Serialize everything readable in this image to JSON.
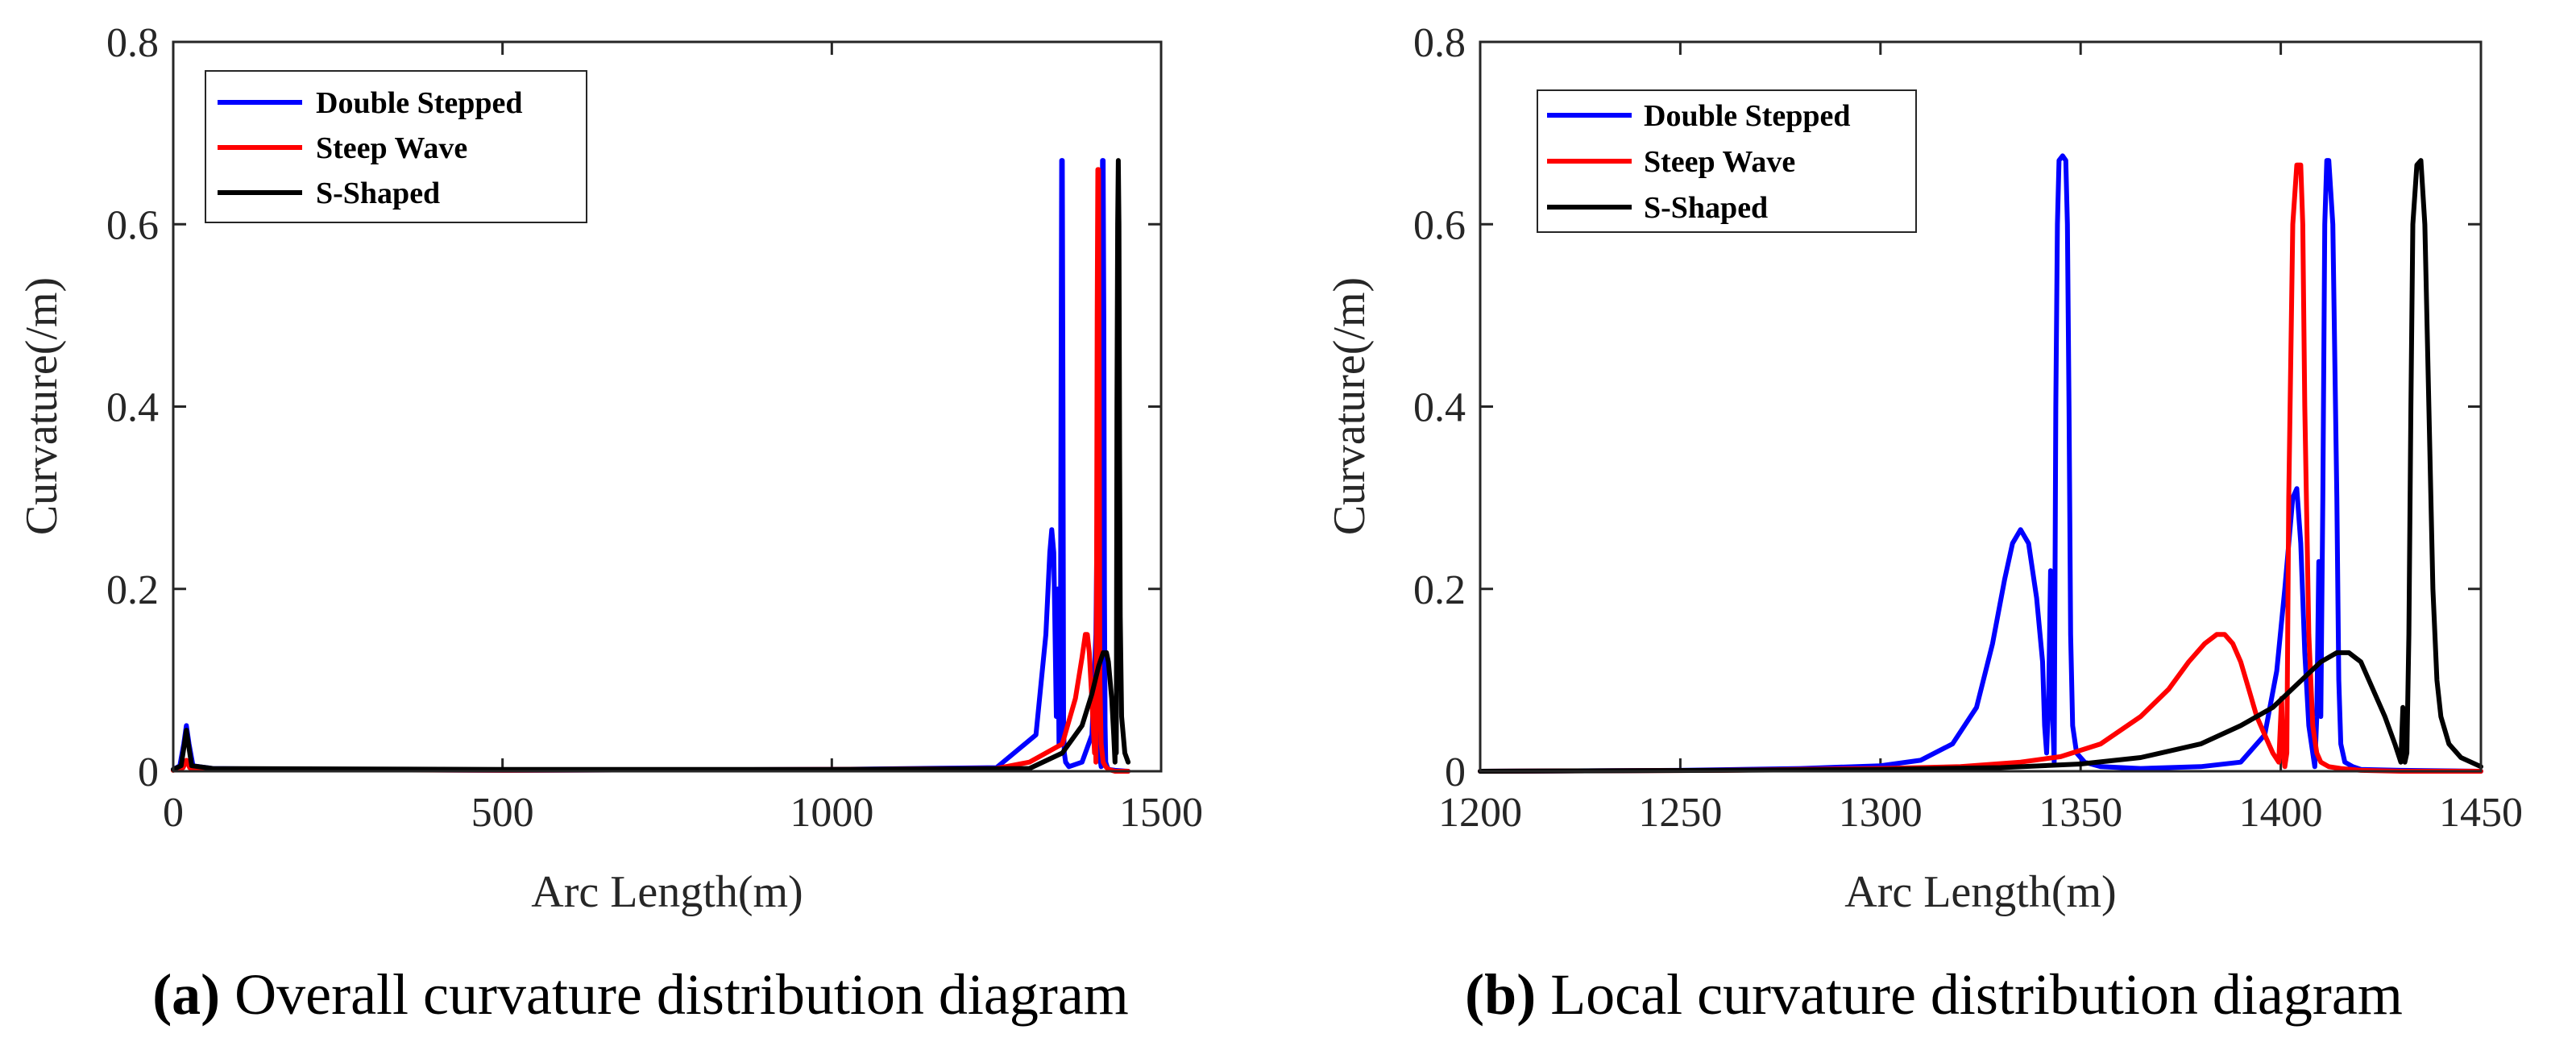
{
  "chart_data": [
    {
      "type": "line",
      "panel_label": "a",
      "caption": "Overall curvature distribution diagram",
      "xlabel": "Arc Length(m)",
      "ylabel": "Curvature(/m)",
      "xlim": [
        0,
        1500
      ],
      "ylim": [
        0,
        0.8
      ],
      "xticks": [
        0,
        500,
        1000,
        1500
      ],
      "yticks": [
        0,
        0.2,
        0.4,
        0.6,
        0.8
      ],
      "xtick_labels": [
        "0",
        "500",
        "1000",
        "1500"
      ],
      "ytick_labels": [
        "0",
        "0.2",
        "0.4",
        "0.6",
        "0.8"
      ],
      "legend_position": "top-left",
      "series": [
        {
          "name": "Double Stepped",
          "color": "#0000ff",
          "x": [
            0,
            10,
            16,
            20,
            24,
            30,
            60,
            200,
            500,
            1000,
            1250,
            1310,
            1325,
            1331,
            1334,
            1337,
            1339,
            1341,
            1343,
            1345,
            1347,
            1348,
            1349,
            1350,
            1351,
            1352,
            1353,
            1355,
            1360,
            1380,
            1395,
            1401,
            1403,
            1405,
            1406,
            1407,
            1408,
            1409,
            1410,
            1411,
            1412,
            1413,
            1414,
            1415,
            1416,
            1418,
            1420,
            1430,
            1450
          ],
          "y": [
            0.002,
            0.006,
            0.03,
            0.05,
            0.03,
            0.006,
            0.003,
            0.002,
            0.001,
            0.002,
            0.004,
            0.04,
            0.15,
            0.24,
            0.265,
            0.24,
            0.15,
            0.06,
            0.2,
            0.03,
            0.05,
            0.4,
            0.67,
            0.67,
            0.4,
            0.05,
            0.02,
            0.01,
            0.005,
            0.01,
            0.04,
            0.15,
            0.29,
            0.3,
            0.2,
            0.05,
            0.01,
            0.005,
            0.3,
            0.67,
            0.67,
            0.5,
            0.2,
            0.05,
            0.01,
            0.005,
            0.002,
            0.001,
            0.0
          ]
        },
        {
          "name": "Steep Wave",
          "color": "#ff0000",
          "x": [
            0,
            15,
            20,
            25,
            60,
            500,
            1000,
            1250,
            1300,
            1350,
            1370,
            1380,
            1385,
            1388,
            1391,
            1394,
            1397,
            1399,
            1400,
            1401,
            1402,
            1403,
            1404,
            1405,
            1406,
            1407,
            1409,
            1412,
            1416,
            1420,
            1425,
            1430,
            1450
          ],
          "y": [
            0.001,
            0.004,
            0.012,
            0.004,
            0.002,
            0.001,
            0.002,
            0.003,
            0.01,
            0.03,
            0.08,
            0.125,
            0.15,
            0.15,
            0.13,
            0.09,
            0.05,
            0.02,
            0.08,
            0.01,
            0.2,
            0.5,
            0.66,
            0.66,
            0.4,
            0.1,
            0.03,
            0.01,
            0.005,
            0.002,
            0.001,
            0.0,
            0.0
          ]
        },
        {
          "name": "S-Shaped",
          "color": "#000000",
          "x": [
            0,
            12,
            17,
            20,
            23,
            28,
            60,
            500,
            1000,
            1300,
            1350,
            1380,
            1395,
            1405,
            1412,
            1417,
            1420,
            1425,
            1428,
            1430,
            1431,
            1432,
            1433,
            1434,
            1435,
            1436,
            1437,
            1438,
            1440,
            1445,
            1450
          ],
          "y": [
            0.002,
            0.006,
            0.03,
            0.045,
            0.03,
            0.006,
            0.003,
            0.002,
            0.002,
            0.003,
            0.02,
            0.05,
            0.085,
            0.115,
            0.13,
            0.13,
            0.12,
            0.08,
            0.04,
            0.01,
            0.07,
            0.02,
            0.4,
            0.6,
            0.67,
            0.6,
            0.35,
            0.17,
            0.06,
            0.02,
            0.01
          ]
        }
      ]
    },
    {
      "type": "line",
      "panel_label": "b",
      "caption": "Local curvature distribution diagram",
      "xlabel": "Arc Length(m)",
      "ylabel": "Curvature(/m)",
      "xlim": [
        1200,
        1450
      ],
      "ylim": [
        0,
        0.8
      ],
      "xticks": [
        1200,
        1250,
        1300,
        1350,
        1400,
        1450
      ],
      "yticks": [
        0,
        0.2,
        0.4,
        0.6,
        0.8
      ],
      "xtick_labels": [
        "1200",
        "1250",
        "1300",
        "1350",
        "1400",
        "1450"
      ],
      "ytick_labels": [
        "0",
        "0.2",
        "0.4",
        "0.6",
        "0.8"
      ],
      "legend_position": "top-left",
      "series": [
        {
          "name": "Double Stepped",
          "color": "#0000ff",
          "x": [
            1200,
            1250,
            1280,
            1300,
            1310,
            1318,
            1324,
            1328,
            1331,
            1333,
            1335,
            1337,
            1339,
            1340.5,
            1341,
            1341.5,
            1342,
            1342.5,
            1343,
            1343.4,
            1343.8,
            1344.2,
            1344.6,
            1345.5,
            1346.3,
            1346.7,
            1347.1,
            1347.5,
            1348,
            1349,
            1351,
            1355,
            1365,
            1380,
            1390,
            1396,
            1399,
            1401,
            1403,
            1404,
            1405,
            1406,
            1407,
            1408,
            1408.5,
            1409,
            1409.5,
            1410,
            1410.5,
            1411,
            1411.5,
            1412,
            1413,
            1414,
            1414.5,
            1415,
            1416,
            1418,
            1420,
            1430,
            1450
          ],
          "y": [
            0.0,
            0.001,
            0.003,
            0.006,
            0.012,
            0.03,
            0.07,
            0.14,
            0.21,
            0.25,
            0.265,
            0.25,
            0.19,
            0.12,
            0.05,
            0.02,
            0.08,
            0.22,
            0.06,
            0.01,
            0.4,
            0.6,
            0.67,
            0.675,
            0.67,
            0.6,
            0.4,
            0.15,
            0.05,
            0.02,
            0.01,
            0.005,
            0.003,
            0.005,
            0.01,
            0.04,
            0.11,
            0.2,
            0.3,
            0.31,
            0.25,
            0.13,
            0.05,
            0.02,
            0.005,
            0.06,
            0.23,
            0.06,
            0.3,
            0.6,
            0.67,
            0.67,
            0.6,
            0.3,
            0.1,
            0.03,
            0.01,
            0.005,
            0.002,
            0.001,
            0.0
          ]
        },
        {
          "name": "Steep Wave",
          "color": "#ff0000",
          "x": [
            1200,
            1260,
            1300,
            1320,
            1335,
            1345,
            1355,
            1365,
            1372,
            1377,
            1381,
            1384,
            1386,
            1388,
            1390,
            1392,
            1394,
            1396,
            1398,
            1399.5,
            1400.2,
            1400.6,
            1401,
            1401.5,
            1402,
            1403,
            1404,
            1404.5,
            1405,
            1405.5,
            1406,
            1407,
            1408,
            1409,
            1410,
            1412,
            1415,
            1420,
            1430,
            1450
          ],
          "y": [
            0.0,
            0.001,
            0.003,
            0.005,
            0.01,
            0.016,
            0.03,
            0.06,
            0.09,
            0.12,
            0.14,
            0.15,
            0.15,
            0.14,
            0.12,
            0.09,
            0.06,
            0.04,
            0.02,
            0.01,
            0.08,
            0.02,
            0.005,
            0.02,
            0.3,
            0.6,
            0.665,
            0.665,
            0.665,
            0.6,
            0.4,
            0.15,
            0.05,
            0.02,
            0.01,
            0.005,
            0.003,
            0.001,
            0.0,
            0.0
          ]
        },
        {
          "name": "S-Shaped",
          "color": "#000000",
          "x": [
            1200,
            1260,
            1300,
            1330,
            1350,
            1365,
            1380,
            1390,
            1398,
            1404,
            1410,
            1414,
            1417,
            1420,
            1423,
            1426,
            1428.5,
            1430,
            1430.5,
            1431,
            1431.5,
            1432,
            1432.5,
            1433,
            1434,
            1435,
            1436,
            1437,
            1438,
            1439,
            1440,
            1442,
            1445,
            1450
          ],
          "y": [
            0.0,
            0.001,
            0.002,
            0.004,
            0.008,
            0.015,
            0.03,
            0.05,
            0.07,
            0.095,
            0.12,
            0.13,
            0.13,
            0.12,
            0.09,
            0.06,
            0.03,
            0.01,
            0.07,
            0.01,
            0.02,
            0.15,
            0.4,
            0.6,
            0.665,
            0.67,
            0.6,
            0.4,
            0.2,
            0.1,
            0.06,
            0.03,
            0.015,
            0.005
          ]
        }
      ]
    }
  ]
}
